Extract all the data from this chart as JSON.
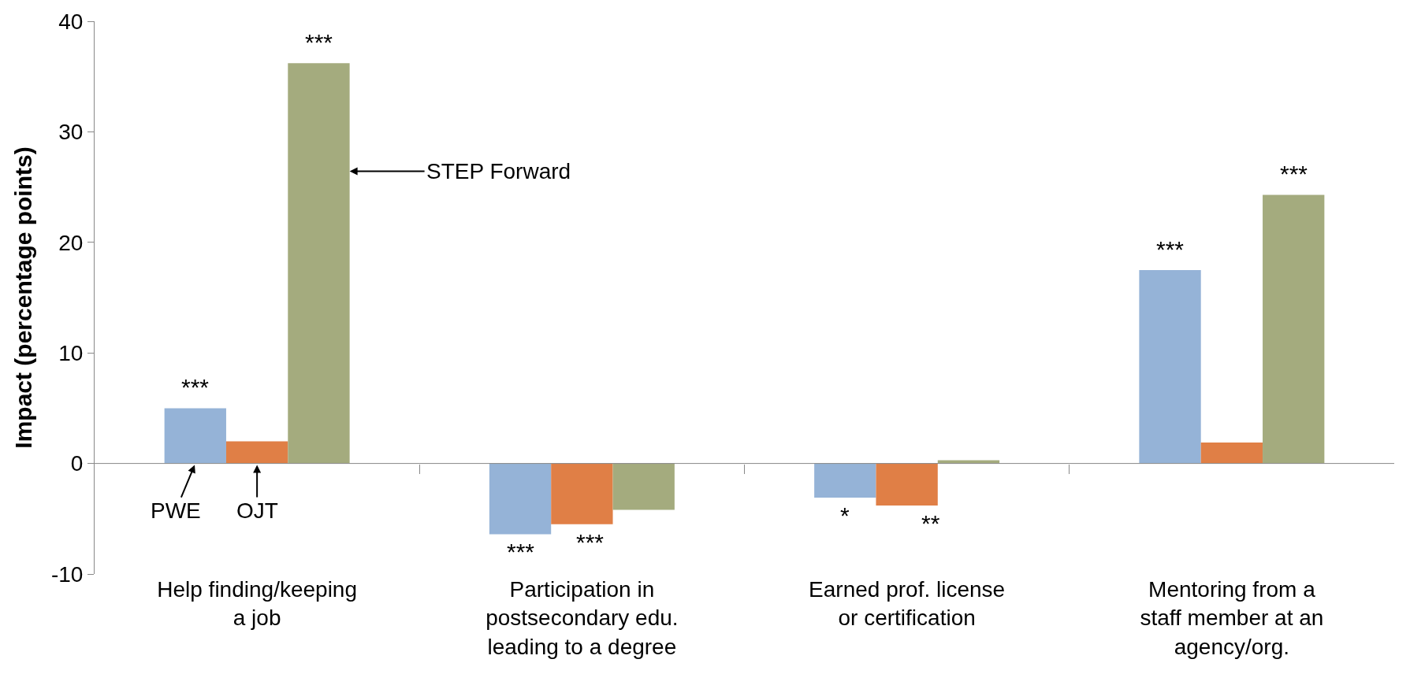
{
  "chart_data": {
    "type": "bar",
    "ylabel": "Impact (percentage points)",
    "categories": [
      "Help finding/keeping a job",
      "Participation in postsecondary edu. leading to a degree",
      "Earned prof. license or certification",
      "Mentoring from a staff member at an agency/org."
    ],
    "series": [
      {
        "name": "PWE",
        "color": "#95b3d7",
        "values": [
          5.0,
          -6.4,
          -3.1,
          17.5
        ]
      },
      {
        "name": "OJT",
        "color": "#e07f46",
        "values": [
          2.0,
          -5.5,
          -3.8,
          1.9
        ]
      },
      {
        "name": "STEP Forward",
        "color": "#a4ab7e",
        "values": [
          36.2,
          -4.2,
          0.3,
          24.3
        ]
      }
    ],
    "ref_lines": [
      {
        "axis": "y",
        "value": 0,
        "color": "#888888"
      }
    ],
    "ylim": [
      -10,
      40
    ],
    "yticks": [
      -10,
      0,
      10,
      20,
      30,
      40
    ],
    "legend": false,
    "annotations": [
      "***",
      "***",
      "***",
      "***",
      "*",
      "**",
      "***",
      "***"
    ]
  }
}
